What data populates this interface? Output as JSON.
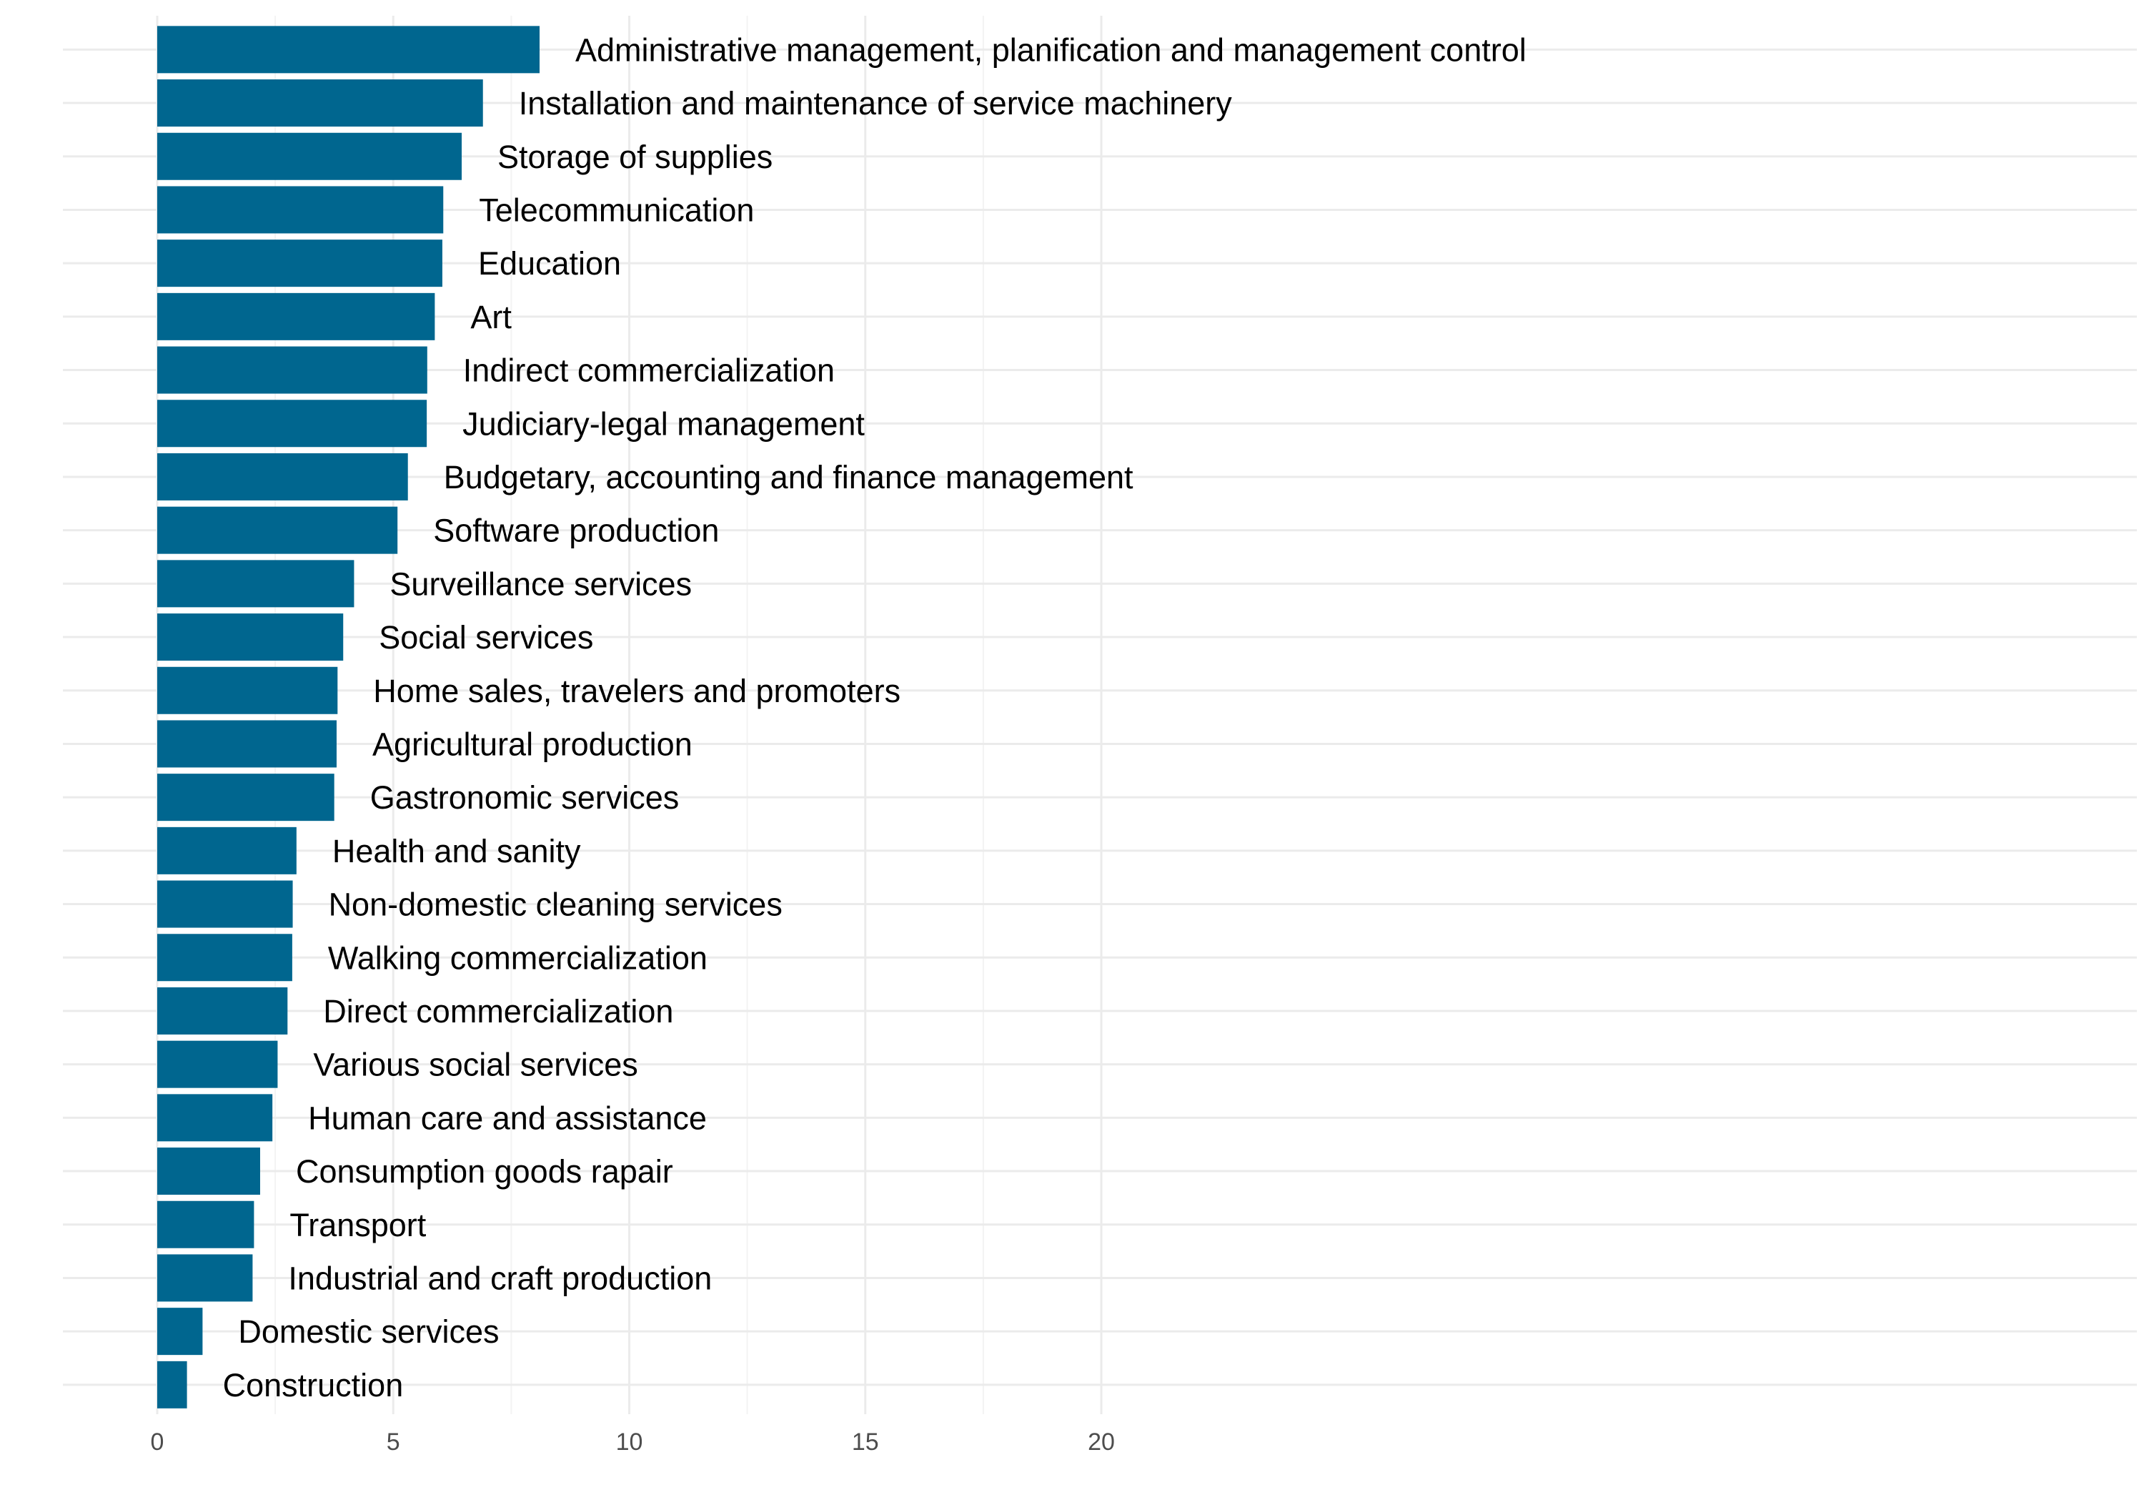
{
  "chart_data": {
    "type": "bar",
    "orientation": "horizontal",
    "title": "",
    "xlabel": "",
    "ylabel": "",
    "xlim": [
      0,
      21
    ],
    "x_ticks": [
      0,
      5,
      10,
      15,
      20
    ],
    "x_tick_labels": [
      "0",
      "5",
      "10",
      "15",
      "20"
    ],
    "grid": true,
    "legend": "none",
    "bar_color": "#00668f",
    "categories": [
      "Administrative management, planification and management control",
      "Installation and maintenance of service machinery",
      "Storage of supplies",
      "Telecommunication",
      "Education",
      "Art",
      "Indirect commercialization",
      "Judiciary-legal management",
      "Budgetary, accounting and finance management",
      "Software production",
      "Surveillance services",
      "Social services",
      "Home sales, travelers and promoters",
      "Agricultural production",
      "Gastronomic services",
      "Health and sanity",
      "Non-domestic cleaning services",
      "Walking commercialization",
      "Direct commercialization",
      "Various social services",
      "Human care and assistance",
      "Consumption goods rapair",
      "Transport",
      "Industrial and craft production",
      "Domestic services",
      "Construction"
    ],
    "values": [
      8.1,
      6.9,
      6.45,
      6.06,
      6.04,
      5.88,
      5.72,
      5.71,
      5.31,
      5.09,
      4.17,
      3.94,
      3.82,
      3.8,
      3.75,
      2.95,
      2.87,
      2.86,
      2.76,
      2.55,
      2.44,
      2.18,
      2.05,
      2.02,
      0.96,
      0.63
    ]
  }
}
